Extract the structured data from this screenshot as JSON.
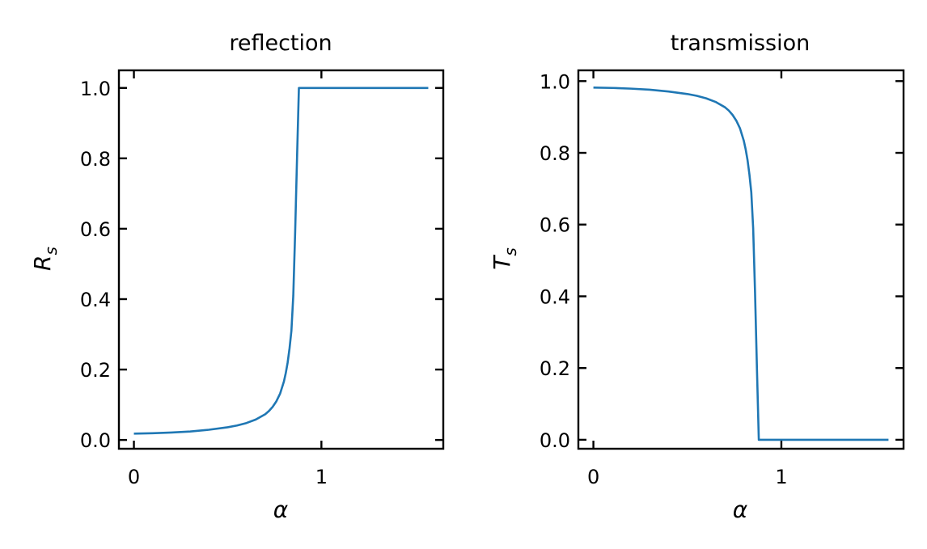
{
  "chart_data": [
    {
      "type": "line",
      "title": "reflection",
      "xlabel": "α",
      "ylabel": "R",
      "ylabel_sub": "s",
      "xlim": [
        -0.08,
        1.65
      ],
      "ylim": [
        -0.025,
        1.05
      ],
      "xticks": [
        {
          "v": 0,
          "label": "0"
        },
        {
          "v": 1,
          "label": "1"
        }
      ],
      "yticks": [
        {
          "v": 0.0,
          "label": "0.0"
        },
        {
          "v": 0.2,
          "label": "0.2"
        },
        {
          "v": 0.4,
          "label": "0.4"
        },
        {
          "v": 0.6,
          "label": "0.6"
        },
        {
          "v": 0.8,
          "label": "0.8"
        },
        {
          "v": 1.0,
          "label": "1.0"
        }
      ],
      "series": [
        {
          "color": "#1f77b4",
          "x": [
            0,
            0.1,
            0.2,
            0.3,
            0.4,
            0.5,
            0.55,
            0.6,
            0.65,
            0.7,
            0.72,
            0.74,
            0.76,
            0.78,
            0.8,
            0.81,
            0.82,
            0.83,
            0.84,
            0.85,
            0.86,
            0.87,
            0.875,
            0.88,
            0.885,
            1.0,
            1.2,
            1.4,
            1.57
          ],
          "y": [
            0.018,
            0.019,
            0.021,
            0.024,
            0.029,
            0.036,
            0.041,
            0.048,
            0.058,
            0.073,
            0.082,
            0.094,
            0.11,
            0.132,
            0.166,
            0.19,
            0.22,
            0.26,
            0.31,
            0.41,
            0.59,
            0.8,
            0.9,
            1.0,
            1.0,
            1.0,
            1.0,
            1.0,
            1.0
          ]
        }
      ]
    },
    {
      "type": "line",
      "title": "transmission",
      "xlabel": "α",
      "ylabel": "T",
      "ylabel_sub": "s",
      "xlim": [
        -0.08,
        1.65
      ],
      "ylim": [
        -0.025,
        1.03
      ],
      "xticks": [
        {
          "v": 0,
          "label": "0"
        },
        {
          "v": 1,
          "label": "1"
        }
      ],
      "yticks": [
        {
          "v": 0.0,
          "label": "0.0"
        },
        {
          "v": 0.2,
          "label": "0.2"
        },
        {
          "v": 0.4,
          "label": "0.4"
        },
        {
          "v": 0.6,
          "label": "0.6"
        },
        {
          "v": 0.8,
          "label": "0.8"
        },
        {
          "v": 1.0,
          "label": "1.0"
        }
      ],
      "series": [
        {
          "color": "#1f77b4",
          "x": [
            0,
            0.1,
            0.2,
            0.3,
            0.4,
            0.5,
            0.55,
            0.6,
            0.65,
            0.7,
            0.72,
            0.74,
            0.76,
            0.78,
            0.8,
            0.81,
            0.82,
            0.83,
            0.84,
            0.85,
            0.86,
            0.87,
            0.875,
            0.88,
            0.885,
            1.0,
            1.2,
            1.4,
            1.57
          ],
          "y": [
            0.982,
            0.981,
            0.979,
            0.976,
            0.971,
            0.964,
            0.959,
            0.952,
            0.942,
            0.927,
            0.918,
            0.906,
            0.89,
            0.868,
            0.834,
            0.81,
            0.78,
            0.74,
            0.69,
            0.59,
            0.41,
            0.2,
            0.1,
            0.0,
            0.0,
            0.0,
            0.0,
            0.0,
            0.0
          ]
        }
      ]
    }
  ]
}
